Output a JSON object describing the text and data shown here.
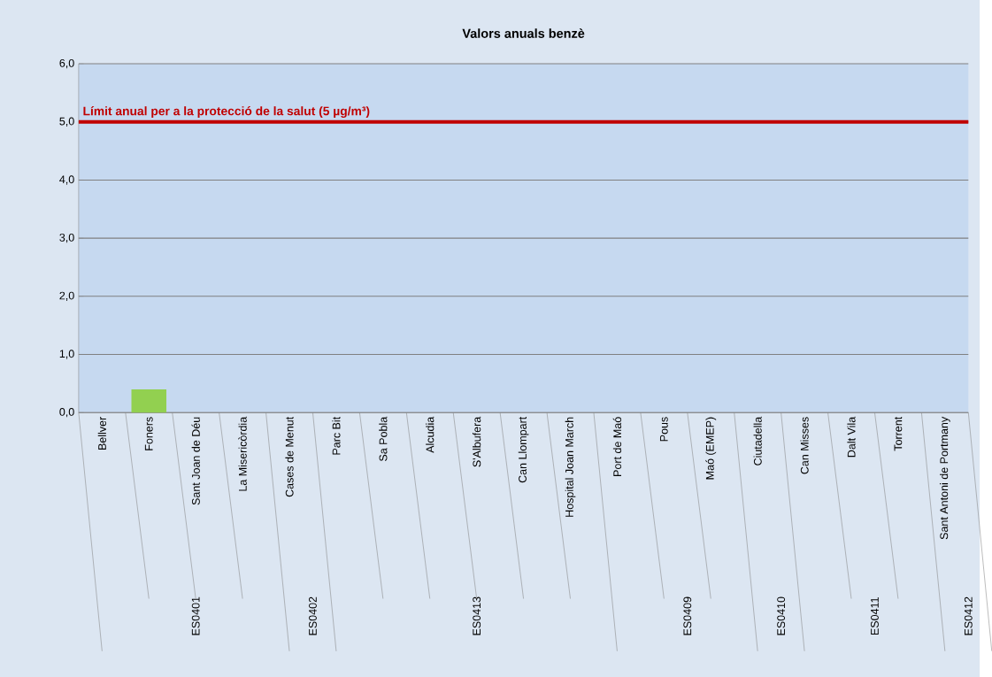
{
  "chart_data": {
    "type": "bar",
    "title": "Valors anuals benzè",
    "categories": [
      "Bellver",
      "Foners",
      "Sant Joan de Déu",
      "La Misericòrdia",
      "Cases de Menut",
      "Parc Bit",
      "Sa Pobla",
      "Alcudia",
      "S'Albufera",
      "Can Llompart",
      "Hospital Joan March",
      "Port de Maó",
      "Pous",
      "Maó (EMEP)",
      "Ciutadella",
      "Can Misses",
      "Dalt Vila",
      "Torrent",
      "Sant Antoni de Portmany"
    ],
    "values": [
      null,
      0.4,
      null,
      null,
      null,
      null,
      null,
      null,
      null,
      null,
      null,
      null,
      null,
      null,
      null,
      null,
      null,
      null,
      null
    ],
    "color": "#92d050",
    "ylim": [
      0,
      6
    ],
    "yticks": [
      {
        "value": 0,
        "label": "0,0"
      },
      {
        "value": 1,
        "label": "1,0"
      },
      {
        "value": 2,
        "label": "2,0"
      },
      {
        "value": 3,
        "label": "3,0"
      },
      {
        "value": 4,
        "label": "4,0"
      },
      {
        "value": 5,
        "label": "5,0"
      },
      {
        "value": 6,
        "label": "6,0"
      }
    ],
    "grid": "y",
    "ref_lines": [
      {
        "axis": "y",
        "value": 5,
        "label": "Límit anual per a la protecció de la salut (5 µg/m³)",
        "color": "#c00000"
      }
    ],
    "annotations": [
      "ES0401",
      "ES0402",
      "ES0413",
      "ES0409",
      "ES0410",
      "ES0411",
      "ES0412"
    ]
  }
}
